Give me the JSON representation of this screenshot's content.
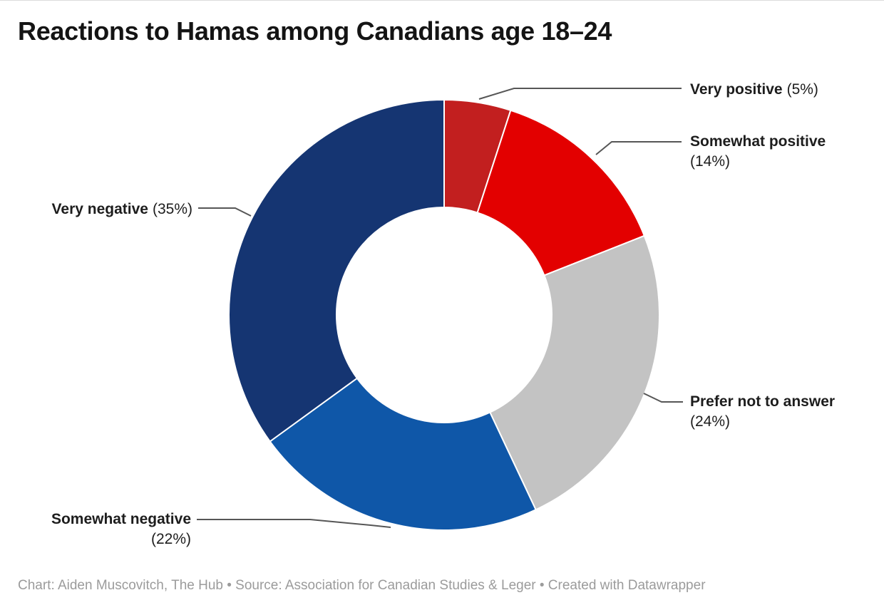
{
  "title": "Reactions to Hamas among Canadians age 18–24",
  "footer": "Chart: Aiden Muscovitch, The Hub • Source: Association for Canadian Studies & Leger • Created with Datawrapper",
  "chart_data": {
    "type": "pie",
    "variant": "donut",
    "title": "Reactions to Hamas among Canadians age 18–24",
    "unit": "%",
    "start_angle_deg": 0,
    "direction": "clockwise",
    "inner_radius_ratio": 0.5,
    "legend_position": "outside-callout-labels",
    "categories": [
      "Very positive",
      "Somewhat positive",
      "Prefer not to answer",
      "Somewhat negative",
      "Very negative"
    ],
    "values": [
      5,
      14,
      24,
      22,
      35
    ],
    "slices": [
      {
        "label": "Very positive",
        "value": 5,
        "pct_label": "(5%)",
        "color": "#c21f1f"
      },
      {
        "label": "Somewhat positive",
        "value": 14,
        "pct_label": "(14%)",
        "color": "#e30000"
      },
      {
        "label": "Prefer not to answer",
        "value": 24,
        "pct_label": "(24%)",
        "color": "#c3c3c3"
      },
      {
        "label": "Somewhat negative",
        "value": 22,
        "pct_label": "(22%)",
        "color": "#0f57a8"
      },
      {
        "label": "Very negative",
        "value": 35,
        "pct_label": "(35%)",
        "color": "#153572"
      }
    ],
    "leader_line_color": "#565656",
    "slice_separator_color": "#ffffff"
  }
}
